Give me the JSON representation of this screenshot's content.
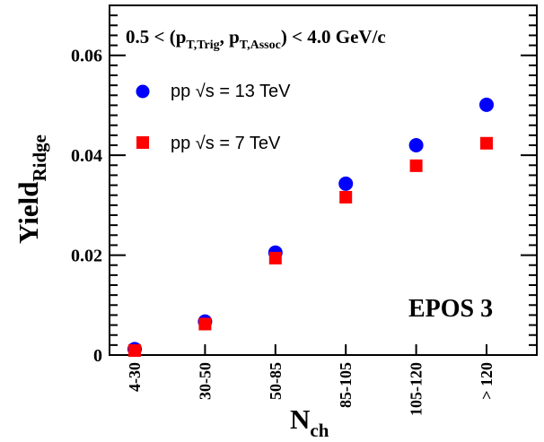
{
  "chart_data": {
    "type": "scatter",
    "categories": [
      "4-30",
      "30-50",
      "50-85",
      "85-105",
      "105-120",
      "> 120"
    ],
    "series": [
      {
        "name": "pp √s = 13 TeV",
        "marker": "circle",
        "color": "#0000ff",
        "values": [
          0.0012,
          0.0067,
          0.0205,
          0.0343,
          0.042,
          0.0501
        ]
      },
      {
        "name": "pp √s = 7 TeV",
        "marker": "square",
        "color": "#ff0000",
        "values": [
          0.0009,
          0.0062,
          0.0194,
          0.0316,
          0.0379,
          0.0424
        ]
      }
    ],
    "ylim": [
      0,
      0.07
    ],
    "yticks": [
      {
        "value": 0,
        "label": "0"
      },
      {
        "value": 0.02,
        "label": "0.02"
      },
      {
        "value": 0.04,
        "label": "0.04"
      },
      {
        "value": 0.06,
        "label": "0.06"
      }
    ],
    "ylabel": {
      "main": "Yield",
      "sub": "Ridge"
    },
    "xlabel": {
      "main": "N",
      "sub": "ch"
    },
    "cut": {
      "prefix": "0.5 < (p",
      "sub1": "T,Trig",
      "comma": ", p",
      "sub2": "T,Assoc",
      "suffix": ") < 4.0 GeV/c"
    },
    "annotation": "EPOS 3",
    "legend_position": "top-left",
    "grid": false
  }
}
